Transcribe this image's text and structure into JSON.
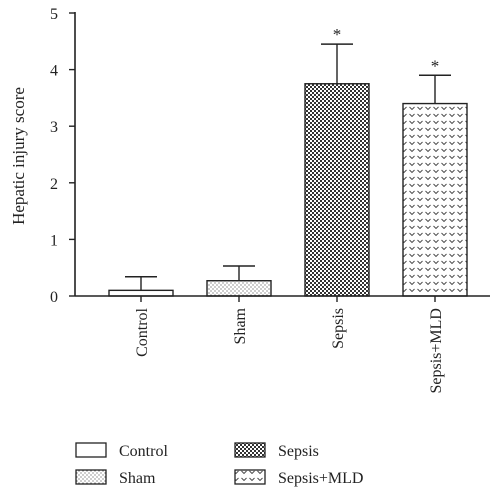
{
  "chart_data": {
    "type": "bar",
    "ylabel": "Hepatic injury score",
    "xlabel": "",
    "ylim": [
      0,
      5
    ],
    "yticks": [
      0,
      1,
      2,
      3,
      4,
      5
    ],
    "categories": [
      "Control",
      "Sham",
      "Sepsis",
      "Sepsis+MLD"
    ],
    "values": [
      0.1,
      0.27,
      3.75,
      3.4
    ],
    "errors": [
      0.24,
      0.26,
      0.7,
      0.5
    ],
    "significance": [
      "",
      "",
      "*",
      "*"
    ],
    "patterns": [
      "blank",
      "dots",
      "checker",
      "chevron"
    ],
    "legend": {
      "placement": "bottom",
      "entries": [
        {
          "label": "Control",
          "pattern": "blank"
        },
        {
          "label": "Sham",
          "pattern": "dots"
        },
        {
          "label": "Sepsis",
          "pattern": "checker"
        },
        {
          "label": "Sepsis+MLD",
          "pattern": "chevron"
        }
      ]
    }
  },
  "colors": {
    "axis": "#222222",
    "bar_fill": "#ffffff",
    "pattern_ink": "#333333"
  }
}
